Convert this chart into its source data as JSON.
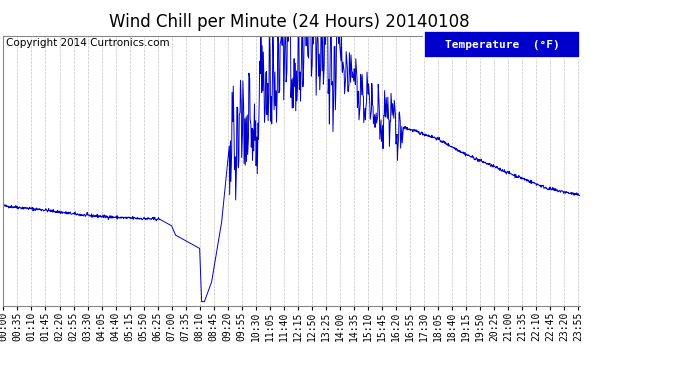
{
  "title": "Wind Chill per Minute (24 Hours) 20140108",
  "copyright_text": "Copyright 2014 Curtronics.com",
  "legend_label": "Temperature  (°F)",
  "yticks": [
    11.2,
    9.6,
    7.9,
    6.3,
    4.6,
    3.0,
    1.3,
    -0.3,
    -1.9,
    -3.6,
    -5.2,
    -6.9,
    -8.5
  ],
  "ymin": -8.5,
  "ymax": 11.2,
  "line_color": "#0000cc",
  "bg_color": "#ffffff",
  "plot_bg_color": "#ffffff",
  "grid_color": "#aaaaaa",
  "title_fontsize": 12,
  "copyright_fontsize": 7.5,
  "tick_fontsize": 7,
  "total_minutes": 1440,
  "x_tick_interval": 35,
  "x_tick_labels": [
    "00:00",
    "00:35",
    "01:10",
    "01:45",
    "02:20",
    "02:55",
    "03:30",
    "04:05",
    "04:40",
    "05:15",
    "05:50",
    "06:25",
    "07:00",
    "07:35",
    "08:10",
    "08:45",
    "09:20",
    "09:55",
    "10:30",
    "11:05",
    "11:40",
    "12:15",
    "12:50",
    "13:25",
    "14:00",
    "14:35",
    "15:10",
    "15:45",
    "16:20",
    "16:55",
    "17:30",
    "18:05",
    "18:40",
    "19:15",
    "19:50",
    "20:25",
    "21:00",
    "21:35",
    "22:10",
    "22:45",
    "23:20",
    "23:55"
  ]
}
